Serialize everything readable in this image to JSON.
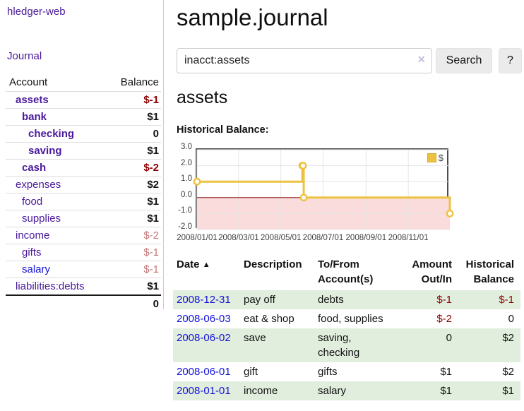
{
  "app": {
    "brand": "hledger-web",
    "nav": {
      "journal": "Journal"
    }
  },
  "sidebar": {
    "header": {
      "account": "Account",
      "balance": "Balance"
    },
    "accounts": [
      {
        "name": "assets",
        "indent": 0,
        "bold": true,
        "balance": "$-1",
        "balance_style": "neg"
      },
      {
        "name": "bank",
        "indent": 1,
        "bold": true,
        "balance": "$1",
        "balance_style": "pos"
      },
      {
        "name": "checking",
        "indent": 2,
        "bold": true,
        "balance": "0",
        "balance_style": "pos"
      },
      {
        "name": "saving",
        "indent": 2,
        "bold": true,
        "balance": "$1",
        "balance_style": "pos"
      },
      {
        "name": "cash",
        "indent": 1,
        "bold": true,
        "balance": "$-2",
        "balance_style": "neg"
      },
      {
        "name": "expenses",
        "indent": 0,
        "bold": false,
        "balance": "$2",
        "balance_style": "pos"
      },
      {
        "name": "food",
        "indent": 1,
        "bold": false,
        "balance": "$1",
        "balance_style": "pos"
      },
      {
        "name": "supplies",
        "indent": 1,
        "bold": false,
        "balance": "$1",
        "balance_style": "pos"
      },
      {
        "name": "income",
        "indent": 0,
        "bold": false,
        "balance": "$-2",
        "balance_style": "neg-dim"
      },
      {
        "name": "gifts",
        "indent": 1,
        "bold": false,
        "balance": "$-1",
        "balance_style": "neg-dim"
      },
      {
        "name": "salary",
        "indent": 1,
        "bold": false,
        "link_style": "blue",
        "balance": "$-1",
        "balance_style": "neg-dim"
      },
      {
        "name": "liabilities:debts",
        "indent": 0,
        "bold": false,
        "balance": "$1",
        "balance_style": "pos"
      }
    ],
    "total": "0"
  },
  "main": {
    "title": "sample.journal",
    "search": {
      "value": "inacct:assets",
      "clear_icon": "×",
      "search_label": "Search",
      "help_label": "?"
    },
    "account_heading": "assets",
    "chart_title": "Historical Balance:"
  },
  "chart_data": {
    "type": "line",
    "title": "Historical Balance",
    "x_range": [
      "2008-01-01",
      "2008-12-31"
    ],
    "ylim": [
      -2,
      3
    ],
    "y_ticks": [
      [
        3,
        "3.0"
      ],
      [
        2,
        "2.0"
      ],
      [
        1,
        "1.0"
      ],
      [
        0,
        "0.0"
      ],
      [
        -1,
        "-1.0"
      ],
      [
        -2,
        "-2.0"
      ]
    ],
    "x_ticks": [
      [
        "2008-01-01",
        "2008/01/01"
      ],
      [
        "2008-03-01",
        "2008/03/01"
      ],
      [
        "2008-05-01",
        "2008/05/01"
      ],
      [
        "2008-07-01",
        "2008/07/01"
      ],
      [
        "2008-09-01",
        "2008/09/01"
      ],
      [
        "2008-11-01",
        "2008/11/01"
      ]
    ],
    "series": [
      {
        "name": "$",
        "color": "#edc240",
        "step": true,
        "points": [
          [
            "2008-01-01",
            1
          ],
          [
            "2008-06-01",
            2
          ],
          [
            "2008-06-02",
            2
          ],
          [
            "2008-06-03",
            0
          ],
          [
            "2008-12-31",
            -1
          ]
        ]
      }
    ],
    "legend_position": "top-right",
    "grid": true,
    "grid_color": "#e4e4e4",
    "negative_region_color": "#fbdcdc",
    "zero_line_color": "#8f1f1f"
  },
  "register": {
    "columns": {
      "date": "Date",
      "description": "Description",
      "accounts": "To/From Account(s)",
      "amount": "Amount Out/In",
      "balance": "Historical Balance"
    },
    "sort_icon": "▲",
    "rows": [
      {
        "date": "2008-12-31",
        "description": "pay off",
        "accounts": "debts",
        "amount": "$-1",
        "amount_negative": true,
        "balance": "$-1",
        "balance_negative": true,
        "highlighted": true
      },
      {
        "date": "2008-06-03",
        "description": "eat & shop",
        "accounts": "food, supplies",
        "amount": "$-2",
        "amount_negative": true,
        "balance": "0",
        "balance_negative": false,
        "highlighted": false
      },
      {
        "date": "2008-06-02",
        "description": "save",
        "accounts": "saving,\nchecking",
        "amount": "0",
        "amount_negative": false,
        "balance": "$2",
        "balance_negative": false,
        "highlighted": true
      },
      {
        "date": "2008-06-01",
        "description": "gift",
        "accounts": "gifts",
        "amount": "$1",
        "amount_negative": false,
        "balance": "$2",
        "balance_negative": false,
        "highlighted": false
      },
      {
        "date": "2008-01-01",
        "description": "income",
        "accounts": "salary",
        "amount": "$1",
        "amount_negative": false,
        "balance": "$1",
        "balance_negative": false,
        "highlighted": true
      }
    ]
  },
  "colors": {
    "accent_purple": "#4a1a9c",
    "link_blue": "#1313d6",
    "negative": "#8b0000",
    "negative_dim": "#c47676",
    "row_highlight": "#e1eedd",
    "series_gold": "#edc240"
  }
}
